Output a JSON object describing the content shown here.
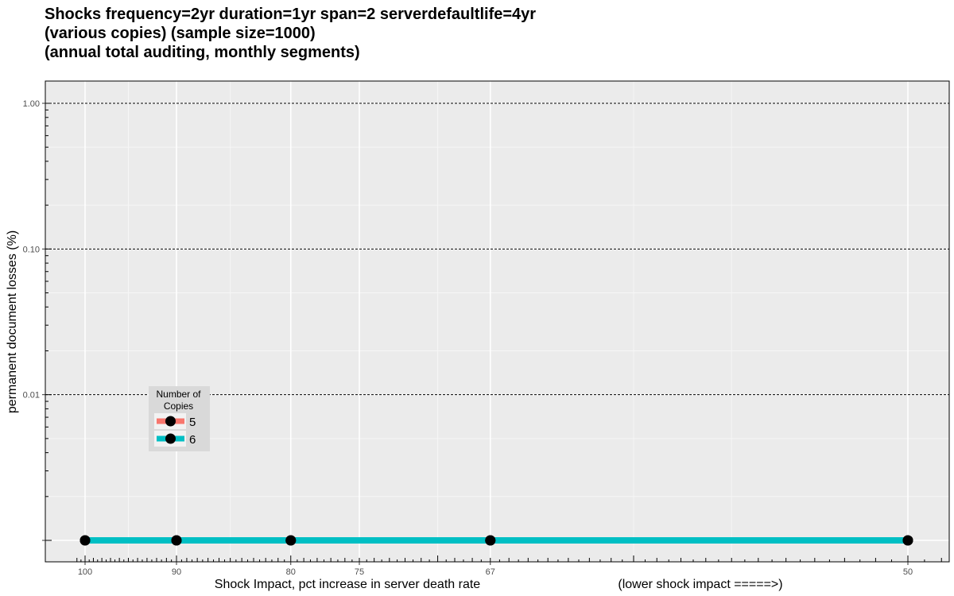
{
  "title_lines": [
    "Shocks frequency=2yr duration=1yr span=2 serverdefaultlife=4yr",
    "(various copies) (sample size=1000)",
    "",
    "(annual total auditing, monthly segments)"
  ],
  "chart_data": {
    "type": "line",
    "title": "Shocks frequency=2yr duration=1yr span=2 serverdefaultlife=4yr (various copies) (sample size=1000) (annual total auditing, monthly segments)",
    "xlabel": "Shock Impact, pct increase in server death rate",
    "xlabel_note": "(lower shock impact =====>)",
    "ylabel": "permanent document losses (%)",
    "x_scale": "reciprocal (tick labels show percent increase)",
    "x_ticks": [
      100,
      90,
      80,
      75,
      67,
      50
    ],
    "y_scale": "log10",
    "y_ticks": [
      "1.00",
      "0.10",
      "0.01"
    ],
    "y_tick_values": [
      1,
      0.1,
      0.01
    ],
    "y_range": [
      0.001,
      1.4
    ],
    "grid": true,
    "legend_title": "Number of Copies",
    "legend_position": "inside, left-center",
    "x": [
      100,
      90,
      80,
      67,
      50
    ],
    "series": [
      {
        "name": "5",
        "color": "#F8766D",
        "values": [
          0.001,
          0.001,
          0.001,
          0.001,
          0.001
        ]
      },
      {
        "name": "6",
        "color": "#00BFC4",
        "values": [
          0.001,
          0.001,
          0.001,
          0.001,
          0.001
        ]
      }
    ]
  }
}
